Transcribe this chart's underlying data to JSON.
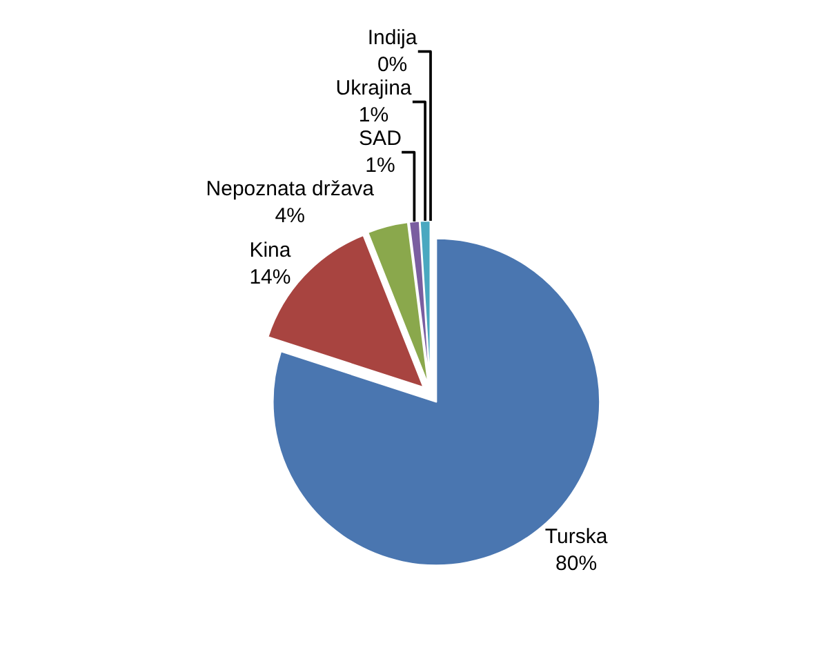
{
  "chart_data": {
    "type": "pie",
    "categories": [
      "Turska",
      "Kina",
      "Nepoznata država",
      "SAD",
      "Ukrajina",
      "Indija"
    ],
    "values": [
      80,
      14,
      4,
      1,
      1,
      0
    ],
    "value_labels": [
      "80%",
      "14%",
      "4%",
      "1%",
      "1%",
      "0%"
    ],
    "colors": [
      "#4a76b0",
      "#a84440",
      "#8aa84c",
      "#7a5ea0",
      "#4aa8c0",
      "#f08a30"
    ],
    "legend": false
  }
}
